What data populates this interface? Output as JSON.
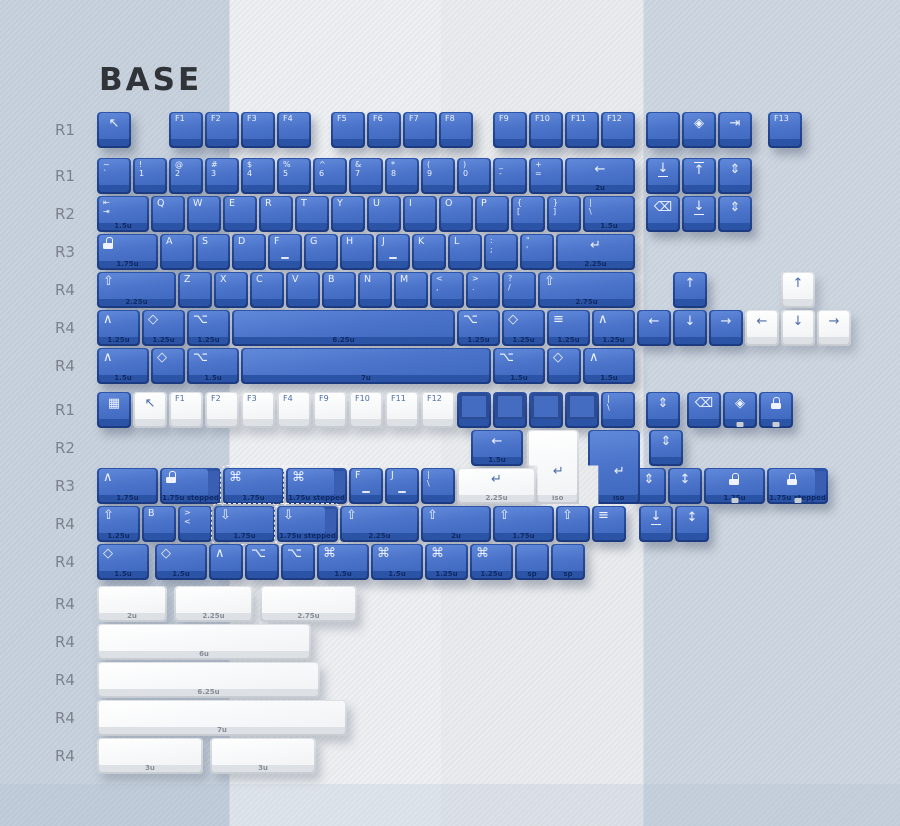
{
  "title": "BASE",
  "unit": 36,
  "colors": {
    "key_blue_top": "#4a73c9",
    "key_blue_side": "#1b3a80",
    "key_blue_lip": "#2c54a6",
    "key_blue_legend": "#eef3ff",
    "key_white_top": "#f5f6f8",
    "key_white_legend": "#4b6ca8",
    "background_left_band": "#c6d0dc",
    "background_mid_band": "#edeff1",
    "background_right_band": "#ccd5df",
    "row_label": "#7b828b",
    "title_color": "#303338"
  },
  "rows": [
    {
      "label": "R1",
      "keys": [
        {
          "n": "escape",
          "t": "↖",
          "f": "cB"
        },
        {
          "n": "f1",
          "t": "F1",
          "g": 1
        },
        {
          "n": "f2",
          "t": "F2"
        },
        {
          "n": "f3",
          "t": "F3"
        },
        {
          "n": "f4",
          "t": "F4"
        },
        {
          "n": "f5",
          "t": "F5",
          "g": 0.5
        },
        {
          "n": "f6",
          "t": "F6"
        },
        {
          "n": "f7",
          "t": "F7"
        },
        {
          "n": "f8",
          "t": "F8"
        },
        {
          "n": "f9",
          "t": "F9",
          "g": 0.5
        },
        {
          "n": "f10",
          "t": "F10"
        },
        {
          "n": "f11",
          "t": "F11"
        },
        {
          "n": "f12",
          "t": "F12"
        },
        {
          "n": "fullscreen",
          "i": "corners",
          "g": 0.25,
          "f": "c"
        },
        {
          "n": "scroll-diamond",
          "t": "◈",
          "f": "cB"
        },
        {
          "n": "skip",
          "t": "⇥",
          "f": "cB"
        },
        {
          "n": "f13",
          "t": "F13",
          "g": 0.4
        }
      ]
    },
    {
      "label": "R1",
      "mt": 8,
      "keys": [
        {
          "n": "grave",
          "t": "~",
          "b": "`"
        },
        {
          "n": "1",
          "t": "!",
          "b": "1"
        },
        {
          "n": "2",
          "t": "@",
          "b": "2"
        },
        {
          "n": "3",
          "t": "#",
          "b": "3"
        },
        {
          "n": "4",
          "t": "$",
          "b": "4"
        },
        {
          "n": "5",
          "t": "%",
          "b": "5"
        },
        {
          "n": "6",
          "t": "^",
          "b": "6"
        },
        {
          "n": "7",
          "t": "&",
          "b": "7"
        },
        {
          "n": "8",
          "t": "*",
          "b": "8"
        },
        {
          "n": "9",
          "t": "(",
          "b": "9"
        },
        {
          "n": "0",
          "t": ")",
          "b": "0"
        },
        {
          "n": "minus",
          "t": "_",
          "b": "-"
        },
        {
          "n": "equals",
          "t": "+",
          "b": "="
        },
        {
          "n": "backspace",
          "t": "←",
          "w": 2,
          "s": "2u",
          "f": "cB"
        },
        {
          "n": "insert",
          "t": "↓",
          "g": 0.25,
          "f": "cBu"
        },
        {
          "n": "home",
          "t": "↑",
          "f": "cBo"
        },
        {
          "n": "page-up",
          "t": "⇕",
          "f": "cB"
        }
      ]
    },
    {
      "label": "R2",
      "keys": [
        {
          "n": "tab",
          "t": "⇤",
          "b": "⇥",
          "w": 1.5,
          "s": "1.5u"
        },
        {
          "n": "q",
          "t": "Q"
        },
        {
          "n": "w",
          "t": "W"
        },
        {
          "n": "e",
          "t": "E"
        },
        {
          "n": "r",
          "t": "R"
        },
        {
          "n": "t",
          "t": "T"
        },
        {
          "n": "y",
          "t": "Y"
        },
        {
          "n": "u",
          "t": "U"
        },
        {
          "n": "i",
          "t": "I"
        },
        {
          "n": "o",
          "t": "O"
        },
        {
          "n": "p",
          "t": "P"
        },
        {
          "n": "lbracket",
          "t": "{",
          "b": "["
        },
        {
          "n": "rbracket",
          "t": "}",
          "b": "]"
        },
        {
          "n": "backslash",
          "t": "|",
          "b": "\\",
          "w": 1.5,
          "s": "1.5u"
        },
        {
          "n": "delete",
          "t": "⌫",
          "g": 0.25,
          "f": "cB"
        },
        {
          "n": "end",
          "t": "↓",
          "f": "cBu"
        },
        {
          "n": "page-down",
          "t": "⇕",
          "f": "cB"
        }
      ]
    },
    {
      "label": "R3",
      "keys": [
        {
          "n": "caps-lock",
          "i": "lock",
          "w": 1.75,
          "s": "1.75u"
        },
        {
          "n": "a",
          "t": "A"
        },
        {
          "n": "s",
          "t": "S"
        },
        {
          "n": "d",
          "t": "D"
        },
        {
          "n": "f",
          "t": "F",
          "f": "h"
        },
        {
          "n": "g",
          "t": "G"
        },
        {
          "n": "h",
          "t": "H"
        },
        {
          "n": "j",
          "t": "J",
          "f": "h"
        },
        {
          "n": "k",
          "t": "K"
        },
        {
          "n": "l",
          "t": "L"
        },
        {
          "n": "semicolon",
          "t": ":",
          "b": ";"
        },
        {
          "n": "quote",
          "t": "\"",
          "b": "'"
        },
        {
          "n": "enter",
          "t": "↵",
          "w": 2.25,
          "s": "2.25u",
          "f": "cB"
        }
      ]
    },
    {
      "label": "R4",
      "keys": [
        {
          "n": "left-shift",
          "t": "⇧",
          "w": 2.25,
          "s": "2.25u",
          "f": "B"
        },
        {
          "n": "z",
          "t": "Z"
        },
        {
          "n": "x",
          "t": "X"
        },
        {
          "n": "c",
          "t": "C"
        },
        {
          "n": "v",
          "t": "V"
        },
        {
          "n": "b",
          "t": "B"
        },
        {
          "n": "nkey",
          "t": "N"
        },
        {
          "n": "m",
          "t": "M"
        },
        {
          "n": "comma",
          "t": "<",
          "b": ","
        },
        {
          "n": "period",
          "t": ">",
          "b": "."
        },
        {
          "n": "slash",
          "t": "?",
          "b": "/"
        },
        {
          "n": "right-shift",
          "t": "⇧",
          "w": 2.75,
          "s": "2.75u",
          "f": "B"
        },
        {
          "n": "up-arrow",
          "t": "↑",
          "g": 1,
          "f": "cB"
        },
        {
          "n": "up-arrow",
          "t": "↑",
          "c": "w",
          "g": 2,
          "f": "cB"
        }
      ]
    },
    {
      "label": "R4",
      "keys": [
        {
          "n": "control",
          "t": "∧",
          "w": 1.25,
          "s": "1.25u",
          "f": "B"
        },
        {
          "n": "super",
          "t": "◇",
          "w": 1.25,
          "s": "1.25u",
          "f": "B"
        },
        {
          "n": "alt",
          "t": "⌥",
          "w": 1.25,
          "s": "1.25u",
          "f": "B"
        },
        {
          "n": "spacebar",
          "w": 6.25,
          "s": "6.25u"
        },
        {
          "n": "alt",
          "t": "⌥",
          "w": 1.25,
          "s": "1.25u",
          "f": "B"
        },
        {
          "n": "super",
          "t": "◇",
          "w": 1.25,
          "s": "1.25u",
          "f": "B"
        },
        {
          "n": "menu",
          "t": "≡",
          "w": 1.25,
          "s": "1.25u",
          "f": "B"
        },
        {
          "n": "control",
          "t": "∧",
          "w": 1.25,
          "s": "1.25u",
          "f": "B"
        },
        {
          "n": "left-arrow",
          "t": "←",
          "f": "cB"
        },
        {
          "n": "down-arrow",
          "t": "↓",
          "f": "cB"
        },
        {
          "n": "right-arrow",
          "t": "→",
          "f": "cB"
        },
        {
          "n": "left-arrow",
          "t": "←",
          "c": "w",
          "f": "cB"
        },
        {
          "n": "down-arrow",
          "t": "↓",
          "c": "w",
          "f": "cB"
        },
        {
          "n": "right-arrow",
          "t": "→",
          "c": "w",
          "f": "cB"
        }
      ]
    },
    {
      "label": "R4",
      "keys": [
        {
          "n": "control",
          "t": "∧",
          "w": 1.5,
          "s": "1.5u",
          "f": "B"
        },
        {
          "n": "super",
          "t": "◇",
          "f": "B"
        },
        {
          "n": "alt",
          "t": "⌥",
          "w": 1.5,
          "s": "1.5u",
          "f": "B"
        },
        {
          "n": "spacebar",
          "w": 7,
          "s": "7u"
        },
        {
          "n": "alt",
          "t": "⌥",
          "w": 1.5,
          "s": "1.5u",
          "f": "B"
        },
        {
          "n": "super",
          "t": "◇",
          "f": "B"
        },
        {
          "n": "control",
          "t": "∧",
          "w": 1.5,
          "s": "1.5u",
          "f": "B"
        }
      ]
    },
    {
      "label": "R1",
      "mt": 6,
      "keys": [
        {
          "n": "qr-code",
          "t": "▦",
          "f": "cB"
        },
        {
          "n": "escape",
          "t": "↖",
          "c": "w",
          "f": "cB"
        },
        {
          "n": "f1",
          "t": "F1",
          "c": "w"
        },
        {
          "n": "f2",
          "t": "F2",
          "c": "w"
        },
        {
          "n": "f3",
          "t": "F3",
          "c": "w"
        },
        {
          "n": "f4",
          "t": "F4",
          "c": "w"
        },
        {
          "n": "f9",
          "t": "F9",
          "c": "w"
        },
        {
          "n": "f10",
          "t": "F10",
          "c": "w"
        },
        {
          "n": "f11",
          "t": "F11",
          "c": "w"
        },
        {
          "n": "f12",
          "t": "F12",
          "c": "w"
        },
        {
          "n": "blank",
          "f": "D"
        },
        {
          "n": "blank",
          "f": "D"
        },
        {
          "n": "blank",
          "f": "D"
        },
        {
          "n": "blank",
          "f": "D"
        },
        {
          "n": "backslash",
          "t": "|",
          "b": "\\"
        },
        {
          "n": "scroll",
          "t": "⇕",
          "g": 0.25,
          "f": "cB"
        },
        {
          "n": "delete",
          "t": "⌫",
          "g": 0.15,
          "f": "cB"
        },
        {
          "n": "scroll-diamond",
          "t": "◈",
          "f": "cBW"
        },
        {
          "n": "lock",
          "i": "lock",
          "f": "cW"
        }
      ]
    },
    {
      "label": "R2",
      "keys": [
        {
          "n": "backspace",
          "t": "←",
          "w": 1.5,
          "s": "1.5u",
          "g": 10.4,
          "f": "cB"
        },
        {
          "n": "iso-enter",
          "t": "↵",
          "w": 1.5,
          "c": "w",
          "s": "iso",
          "g": 0.05,
          "f": "cBI"
        },
        {
          "n": "iso-enter",
          "t": "↵",
          "w": 1.5,
          "s": "iso",
          "g": 0.2,
          "f": "cBI"
        },
        {
          "n": "scroll",
          "t": "⇕",
          "g": 0.2,
          "f": "cB"
        }
      ]
    },
    {
      "label": "R3",
      "keys": [
        {
          "n": "control",
          "t": "∧",
          "w": 1.75,
          "s": "1.75u",
          "f": "B"
        },
        {
          "n": "lock",
          "i": "lock",
          "w": 1.75,
          "s": "1.75u stepped",
          "f": "p"
        },
        {
          "n": "command",
          "t": "⌘",
          "w": 1.75,
          "s": "1.75u",
          "f": "Bd"
        },
        {
          "n": "command",
          "t": "⌘",
          "w": 1.75,
          "s": "1.75u stepped",
          "f": "Bdp"
        },
        {
          "n": "f",
          "t": "F",
          "f": "h"
        },
        {
          "n": "j",
          "t": "J",
          "f": "h"
        },
        {
          "n": "backslash",
          "t": "|",
          "b": "\\"
        },
        {
          "n": "enter",
          "t": "↵",
          "c": "w",
          "w": 2.25,
          "s": "2.25u",
          "f": "cB"
        },
        {
          "n": "scroll",
          "t": "⇕",
          "g": 2.6,
          "f": "cB"
        },
        {
          "n": "scroll",
          "t": "↕",
          "f": "cB"
        },
        {
          "n": "lock",
          "i": "lock",
          "w": 1.75,
          "s": "1.75u",
          "f": "cW"
        },
        {
          "n": "lock",
          "i": "lock",
          "w": 1.75,
          "s": "1.75u stepped",
          "f": "cWp"
        }
      ]
    },
    {
      "label": "R4",
      "keys": [
        {
          "n": "shift",
          "t": "⇧",
          "w": 1.25,
          "s": "1.25u",
          "f": "B"
        },
        {
          "n": "b",
          "t": "B"
        },
        {
          "n": "angle",
          "t": ">",
          "b": "<"
        },
        {
          "n": "shift-down",
          "t": "⇩",
          "w": 1.75,
          "s": "1.75u",
          "f": "Bd"
        },
        {
          "n": "shift-down",
          "t": "⇩",
          "w": 1.75,
          "s": "1.75u stepped",
          "f": "Bdp"
        },
        {
          "n": "shift",
          "t": "⇧",
          "w": 2.25,
          "s": "2.25u",
          "f": "B"
        },
        {
          "n": "shift",
          "t": "⇧",
          "w": 2,
          "s": "2u",
          "f": "B"
        },
        {
          "n": "shift",
          "t": "⇧",
          "w": 1.75,
          "s": "1.75u",
          "f": "B"
        },
        {
          "n": "shift",
          "t": "⇧",
          "f": "B"
        },
        {
          "n": "menu",
          "t": "≡",
          "f": "B"
        },
        {
          "n": "end",
          "t": "↓",
          "g": 0.3,
          "f": "cBu"
        },
        {
          "n": "page-down",
          "t": "↕",
          "f": "cB"
        }
      ]
    },
    {
      "label": "R4",
      "keys": [
        {
          "n": "super",
          "t": "◇",
          "w": 1.5,
          "s": "1.5u",
          "f": "B"
        },
        {
          "n": "super",
          "t": "◇",
          "w": 1.5,
          "s": "1.5u",
          "g": 0.1,
          "f": "B"
        },
        {
          "n": "control",
          "t": "∧",
          "f": "B"
        },
        {
          "n": "alt",
          "t": "⌥",
          "f": "B"
        },
        {
          "n": "alt",
          "t": "⌥",
          "f": "B"
        },
        {
          "n": "command",
          "t": "⌘",
          "w": 1.5,
          "s": "1.5u",
          "f": "B"
        },
        {
          "n": "command",
          "t": "⌘",
          "w": 1.5,
          "s": "1.5u",
          "f": "B"
        },
        {
          "n": "command",
          "t": "⌘",
          "w": 1.25,
          "s": "1.25u",
          "f": "B"
        },
        {
          "n": "command",
          "t": "⌘",
          "w": 1.25,
          "s": "1.25u",
          "f": "B"
        },
        {
          "n": "space",
          "s": "sp"
        },
        {
          "n": "space",
          "s": "sp"
        }
      ]
    },
    {
      "label": "R4",
      "mt": 4,
      "keys": [
        {
          "n": "spacebar",
          "c": "w",
          "w": 2,
          "s": "2u"
        },
        {
          "n": "spacebar",
          "c": "w",
          "w": 2.25,
          "s": "2.25u",
          "g": 0.15
        },
        {
          "n": "spacebar",
          "c": "w",
          "w": 2.75,
          "s": "2.75u",
          "g": 0.15
        }
      ]
    },
    {
      "label": "R4",
      "keys": [
        {
          "n": "spacebar",
          "c": "w",
          "w": 6,
          "s": "6u"
        }
      ]
    },
    {
      "label": "R4",
      "keys": [
        {
          "n": "spacebar",
          "c": "w",
          "w": 6.25,
          "s": "6.25u"
        }
      ]
    },
    {
      "label": "R4",
      "keys": [
        {
          "n": "spacebar",
          "c": "w",
          "w": 7,
          "s": "7u"
        }
      ]
    },
    {
      "label": "R4",
      "keys": [
        {
          "n": "spacebar",
          "c": "w",
          "w": 3,
          "s": "3u"
        },
        {
          "n": "spacebar",
          "c": "w",
          "w": 3,
          "s": "3u",
          "g": 0.15
        }
      ]
    }
  ]
}
